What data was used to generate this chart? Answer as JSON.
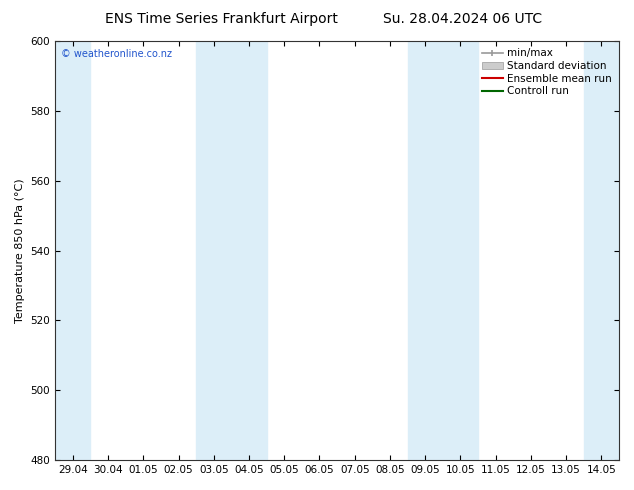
{
  "title_left": "ENS Time Series Frankfurt Airport",
  "title_right": "Su. 28.04.2024 06 UTC",
  "ylabel": "Temperature 850 hPa (°C)",
  "ylim": [
    480,
    600
  ],
  "yticks": [
    480,
    500,
    520,
    540,
    560,
    580,
    600
  ],
  "bg_color": "#ffffff",
  "plot_bg": "#ffffff",
  "watermark": "© weatheronline.co.nz",
  "shaded_color": "#dceef8",
  "grid_color": "#aaaaaa",
  "x_tick_labels": [
    "29.04",
    "30.04",
    "01.05",
    "02.05",
    "03.05",
    "04.05",
    "05.05",
    "06.05",
    "07.05",
    "08.05",
    "09.05",
    "10.05",
    "11.05",
    "12.05",
    "13.05",
    "14.05"
  ],
  "title_fontsize": 10,
  "tick_fontsize": 7.5,
  "label_fontsize": 8,
  "legend_fontsize": 7.5
}
